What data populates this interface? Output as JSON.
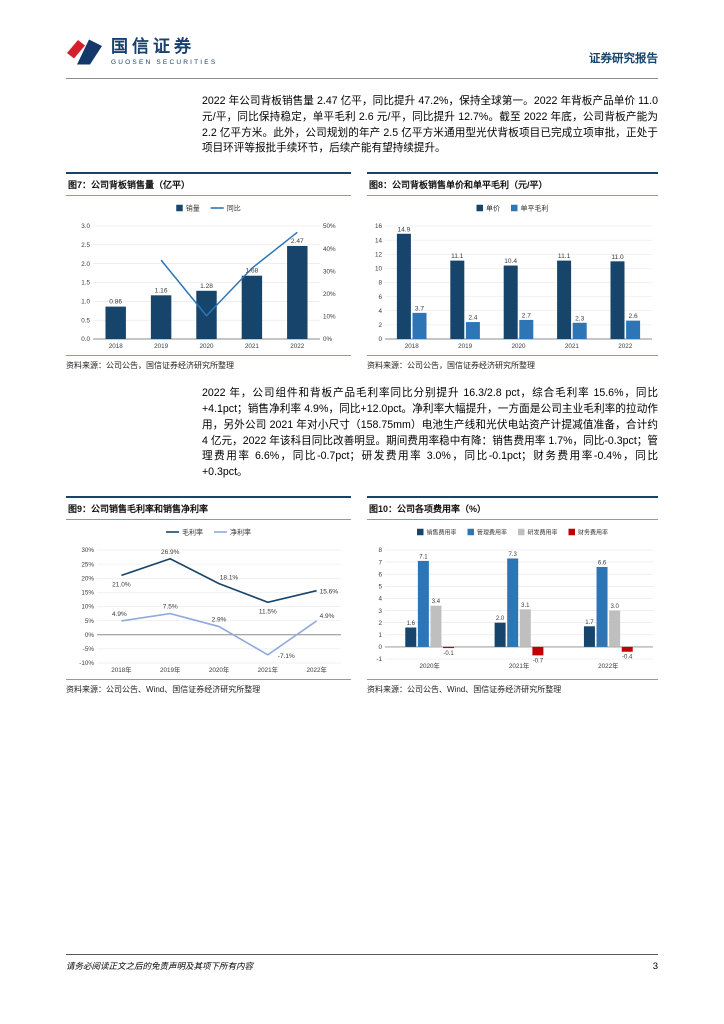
{
  "header": {
    "logo_cn": "国信证券",
    "logo_en": "GUOSEN SECURITIES",
    "report_type": "证券研究报告"
  },
  "body": {
    "paragraph1": "2022 年公司背板销售量 2.47 亿平，同比提升 47.2%，保持全球第一。2022 年背板产品单价 11.0 元/平，同比保持稳定，单平毛利 2.6 元/平，同比提升 12.7%。截至 2022 年底，公司背板产能为 2.2 亿平方米。此外，公司规划的年产 2.5 亿平方米通用型光伏背板项目已完成立项审批，正处于项目环评等报批手续环节，后续产能有望持续提升。",
    "paragraph2": "2022 年，公司组件和背板产品毛利率同比分别提升 16.3/2.8 pct，综合毛利率 15.6%，同比+4.1pct；销售净利率 4.9%，同比+12.0pct。净利率大幅提升，一方面是公司主业毛利率的拉动作用，另外公司 2021 年对小尺寸（158.75mm）电池生产线和光伏电站资产计提减值准备，合计约 4 亿元，2022 年该科目同比改善明显。期间费用率稳中有降：销售费用率 1.7%，同比-0.3pct；管理费用率 6.6%，同比-0.7pct；研发费用率 3.0%，同比-0.1pct；财务费用率-0.4%，同比+0.3pct。"
  },
  "figures": {
    "fig7": {
      "title": "图7：公司背板销售量（亿平）",
      "source": "资料来源：公司公告，国信证券经济研究所整理"
    },
    "fig8": {
      "title": "图8：公司背板销售单价和单平毛利（元/平）",
      "source": "资料来源：公司公告，国信证券经济研究所整理"
    },
    "fig9": {
      "title": "图9：公司销售毛利率和销售净利率",
      "source": "资料来源：公司公告、Wind、国信证券经济研究所整理"
    },
    "fig10": {
      "title": "图10：公司各项费用率（%）",
      "source": "资料来源：公司公告、Wind、国信证券经济研究所整理"
    }
  },
  "chart_data": [
    {
      "id": "fig7",
      "type": "bar",
      "title": "图7：公司背板销售量（亿平）",
      "categories": [
        "2018",
        "2019",
        "2020",
        "2021",
        "2022"
      ],
      "series": [
        {
          "name": "销量",
          "kind": "bar",
          "axis": "left",
          "color": "#17446b",
          "values": [
            0.86,
            1.16,
            1.28,
            1.68,
            2.47
          ],
          "labels": [
            "0.86",
            "1.16",
            "1.28",
            "1.68",
            "2.47"
          ]
        },
        {
          "name": "同比",
          "kind": "line",
          "axis": "right",
          "color": "#2e75b6",
          "values": [
            null,
            34.9,
            10.3,
            31.3,
            47.2
          ]
        }
      ],
      "left_axis": {
        "min": 0,
        "max": 3.0,
        "step": 0.5
      },
      "right_axis": {
        "min": 0,
        "max": 50,
        "step": 10
      },
      "legend_position": "top",
      "grid": true
    },
    {
      "id": "fig8",
      "type": "bar",
      "title": "图8：公司背板销售单价和单平毛利（元/平）",
      "categories": [
        "2018",
        "2019",
        "2020",
        "2021",
        "2022"
      ],
      "series": [
        {
          "name": "单价",
          "kind": "bar",
          "color": "#17446b",
          "values": [
            14.9,
            11.1,
            10.4,
            11.1,
            11.0
          ],
          "labels": [
            "14.9",
            "11.1",
            "10.4",
            "11.1",
            "11.0"
          ]
        },
        {
          "name": "单平毛利",
          "kind": "bar",
          "color": "#2e75b6",
          "values": [
            3.7,
            2.4,
            2.7,
            2.3,
            2.6
          ],
          "labels": [
            "3.7",
            "2.4",
            "2.7",
            "2.3",
            "2.6"
          ]
        }
      ],
      "y_axis": {
        "min": 0,
        "max": 16,
        "step": 2
      },
      "legend_position": "top",
      "grid": true
    },
    {
      "id": "fig9",
      "type": "line",
      "title": "图9：公司销售毛利率和销售净利率",
      "categories": [
        "2018年",
        "2019年",
        "2020年",
        "2021年",
        "2022年"
      ],
      "series": [
        {
          "name": "毛利率",
          "kind": "line",
          "color": "#17446b",
          "values": [
            21.0,
            26.9,
            18.1,
            11.5,
            15.6
          ],
          "labels": [
            "21.0%",
            "26.9%",
            "18.1%",
            "11.5%",
            "15.6%"
          ]
        },
        {
          "name": "净利率",
          "kind": "line",
          "color": "#8faadc",
          "values": [
            4.9,
            7.5,
            2.9,
            -7.1,
            4.9
          ],
          "labels": [
            "4.9%",
            "7.5%",
            "2.9%",
            "-7.1%",
            "4.9%"
          ]
        }
      ],
      "y_axis": {
        "min": -10,
        "max": 30,
        "step": 5
      },
      "legend_position": "top",
      "grid": true
    },
    {
      "id": "fig10",
      "type": "bar",
      "title": "图10：公司各项费用率（%）",
      "categories": [
        "2020年",
        "2021年",
        "2022年"
      ],
      "series": [
        {
          "name": "销售费用率",
          "kind": "bar",
          "color": "#17446b",
          "values": [
            1.6,
            2.0,
            1.7
          ],
          "labels": [
            "1.6",
            "2.0",
            "1.7"
          ]
        },
        {
          "name": "管理费用率",
          "kind": "bar",
          "color": "#2e75b6",
          "values": [
            7.1,
            7.3,
            6.6
          ],
          "labels": [
            "7.1",
            "7.3",
            "6.6"
          ]
        },
        {
          "name": "研发费用率",
          "kind": "bar",
          "color": "#bfbfbf",
          "values": [
            3.4,
            3.1,
            3.0
          ],
          "labels": [
            "3.4",
            "3.1",
            "3.0"
          ]
        },
        {
          "name": "财务费用率",
          "kind": "bar",
          "color": "#c00000",
          "values": [
            -0.1,
            -0.7,
            -0.4
          ],
          "labels": [
            "-0.1",
            "-0.7",
            "-0.4"
          ]
        }
      ],
      "y_axis": {
        "min": -1,
        "max": 8,
        "step": 1
      },
      "legend_position": "top",
      "grid": true
    }
  ],
  "footer": {
    "disclaimer": "请务必阅读正文之后的免责声明及其项下所有内容",
    "page_number": "3"
  },
  "colors": {
    "navy": "#17446b",
    "blue": "#2e75b6",
    "light_blue": "#8faadc",
    "gray": "#bfbfbf",
    "red": "#c00000",
    "logo_red": "#d3212c"
  }
}
